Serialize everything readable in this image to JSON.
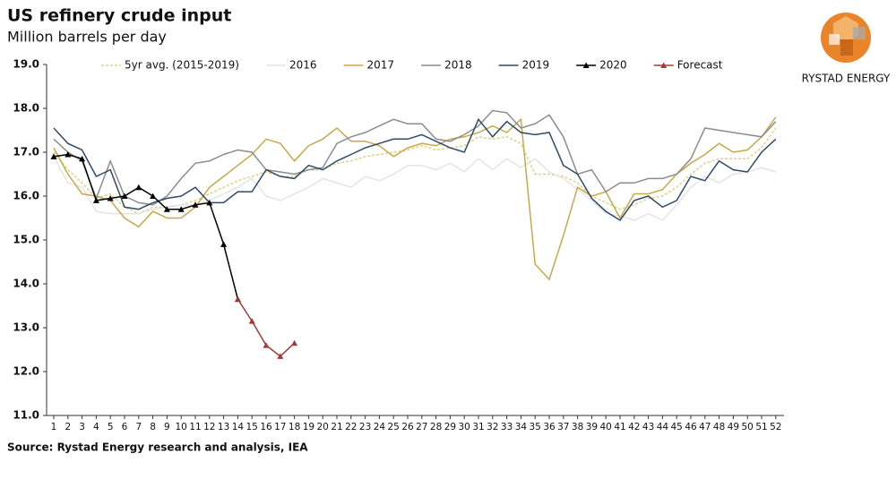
{
  "chart_data": {
    "type": "line",
    "title": "US refinery crude input",
    "subtitle": "Million barrels per day",
    "source": "Source: Rystad Energy research and analysis, IEA",
    "categories": [
      "1",
      "2",
      "3",
      "4",
      "5",
      "6",
      "7",
      "8",
      "9",
      "10",
      "11",
      "12",
      "13",
      "14",
      "15",
      "16",
      "17",
      "18",
      "19",
      "20",
      "21",
      "22",
      "23",
      "24",
      "25",
      "26",
      "27",
      "28",
      "29",
      "30",
      "31",
      "32",
      "33",
      "34",
      "35",
      "36",
      "37",
      "38",
      "39",
      "40",
      "41",
      "42",
      "43",
      "44",
      "45",
      "46",
      "47",
      "48",
      "49",
      "50",
      "51",
      "52"
    ],
    "ylim": [
      11,
      19
    ],
    "yticks": [
      {
        "value": 11,
        "label": "11.0"
      },
      {
        "value": 12,
        "label": "12.0"
      },
      {
        "value": 13,
        "label": "13.0"
      },
      {
        "value": 14,
        "label": "14.0"
      },
      {
        "value": 15,
        "label": "15.0"
      },
      {
        "value": 16,
        "label": "16.0"
      },
      {
        "value": 17,
        "label": "17.0"
      },
      {
        "value": 18,
        "label": "18.0"
      },
      {
        "value": 19,
        "label": "19.0"
      }
    ],
    "grid": false,
    "legend": "top",
    "series": [
      {
        "name": "5yr avg. (2015-2019)",
        "color": "#e3cf86",
        "dashed": true,
        "values": [
          17.0,
          16.6,
          16.3,
          15.95,
          16.05,
          15.75,
          15.6,
          15.75,
          15.75,
          15.8,
          15.9,
          16.05,
          16.2,
          16.35,
          16.45,
          16.55,
          16.45,
          16.45,
          16.6,
          16.6,
          16.75,
          16.8,
          16.9,
          16.95,
          17.0,
          17.05,
          17.15,
          17.05,
          17.1,
          17.15,
          17.35,
          17.3,
          17.35,
          17.2,
          16.5,
          16.5,
          16.45,
          16.3,
          16.0,
          15.85,
          15.7,
          15.8,
          15.95,
          16.0,
          16.2,
          16.5,
          16.75,
          16.85,
          16.85,
          16.85,
          17.1,
          17.55
        ]
      },
      {
        "name": "2016",
        "color": "#e4e4e4",
        "values": [
          16.9,
          16.3,
          16.2,
          15.65,
          15.6,
          15.6,
          15.6,
          15.7,
          15.75,
          15.8,
          15.8,
          15.9,
          16.05,
          16.2,
          16.4,
          16.0,
          15.9,
          16.05,
          16.2,
          16.4,
          16.3,
          16.2,
          16.45,
          16.35,
          16.5,
          16.7,
          16.7,
          16.6,
          16.75,
          16.55,
          16.85,
          16.6,
          16.85,
          16.65,
          16.85,
          16.55,
          16.4,
          16.15,
          15.9,
          15.6,
          15.55,
          15.45,
          15.6,
          15.45,
          15.8,
          16.2,
          16.45,
          16.3,
          16.5,
          16.55,
          16.65,
          16.55
        ]
      },
      {
        "name": "2017",
        "color": "#c9a84a",
        "values": [
          17.1,
          16.5,
          16.05,
          16.0,
          15.9,
          15.5,
          15.3,
          15.65,
          15.5,
          15.5,
          15.75,
          16.2,
          16.45,
          16.7,
          16.95,
          17.3,
          17.2,
          16.8,
          17.15,
          17.3,
          17.55,
          17.25,
          17.25,
          17.15,
          16.9,
          17.1,
          17.2,
          17.15,
          17.3,
          17.35,
          17.45,
          17.6,
          17.45,
          17.75,
          14.45,
          14.1,
          15.1,
          16.2,
          16.0,
          16.1,
          15.5,
          16.05,
          16.05,
          16.15,
          16.5,
          16.75,
          16.95,
          17.2,
          17.0,
          17.05,
          17.35,
          17.8
        ]
      },
      {
        "name": "2018",
        "color": "#8c8c8c",
        "values": [
          17.3,
          17.0,
          16.8,
          15.95,
          16.8,
          16.0,
          15.85,
          15.8,
          16.0,
          16.4,
          16.75,
          16.8,
          16.95,
          17.05,
          17.0,
          16.6,
          16.55,
          16.5,
          16.6,
          16.65,
          17.2,
          17.35,
          17.45,
          17.6,
          17.75,
          17.65,
          17.65,
          17.3,
          17.25,
          17.4,
          17.6,
          17.95,
          17.9,
          17.55,
          17.65,
          17.85,
          17.35,
          16.5,
          16.6,
          16.1,
          16.3,
          16.3,
          16.4,
          16.4,
          16.5,
          16.85,
          17.55,
          17.5,
          17.45,
          17.4,
          17.35,
          17.7
        ]
      },
      {
        "name": "2019",
        "color": "#2f4a6a",
        "values": [
          17.55,
          17.2,
          17.05,
          16.45,
          16.6,
          15.75,
          15.7,
          15.85,
          15.95,
          16.0,
          16.2,
          15.85,
          15.85,
          16.1,
          16.1,
          16.6,
          16.45,
          16.4,
          16.7,
          16.6,
          16.8,
          16.95,
          17.1,
          17.2,
          17.3,
          17.3,
          17.4,
          17.25,
          17.1,
          17.0,
          17.75,
          17.35,
          17.7,
          17.45,
          17.4,
          17.45,
          16.7,
          16.5,
          15.95,
          15.65,
          15.45,
          15.9,
          16.0,
          15.75,
          15.9,
          16.45,
          16.35,
          16.8,
          16.6,
          16.55,
          17.0,
          17.3
        ]
      },
      {
        "name": "2020",
        "color": "#000000",
        "marker": "triangle",
        "values": [
          16.9,
          16.95,
          16.85,
          15.9,
          15.95,
          16.0,
          16.2,
          16.0,
          15.7,
          15.7,
          15.8,
          15.85,
          14.9,
          13.65,
          null,
          null,
          null,
          null,
          null,
          null,
          null,
          null,
          null,
          null,
          null,
          null,
          null,
          null,
          null,
          null,
          null,
          null,
          null,
          null,
          null,
          null,
          null,
          null,
          null,
          null,
          null,
          null,
          null,
          null,
          null,
          null,
          null,
          null,
          null,
          null,
          null,
          null
        ]
      },
      {
        "name": "Forecast",
        "color": "#a33a3a",
        "marker": "triangle",
        "values": [
          null,
          null,
          null,
          null,
          null,
          null,
          null,
          null,
          null,
          null,
          null,
          null,
          null,
          13.65,
          13.15,
          12.6,
          12.35,
          12.65,
          null,
          null,
          null,
          null,
          null,
          null,
          null,
          null,
          null,
          null,
          null,
          null,
          null,
          null,
          null,
          null,
          null,
          null,
          null,
          null,
          null,
          null,
          null,
          null,
          null,
          null,
          null,
          null,
          null,
          null,
          null,
          null,
          null,
          null
        ]
      }
    ]
  },
  "logo": {
    "text": "RYSTAD ENERGY"
  }
}
